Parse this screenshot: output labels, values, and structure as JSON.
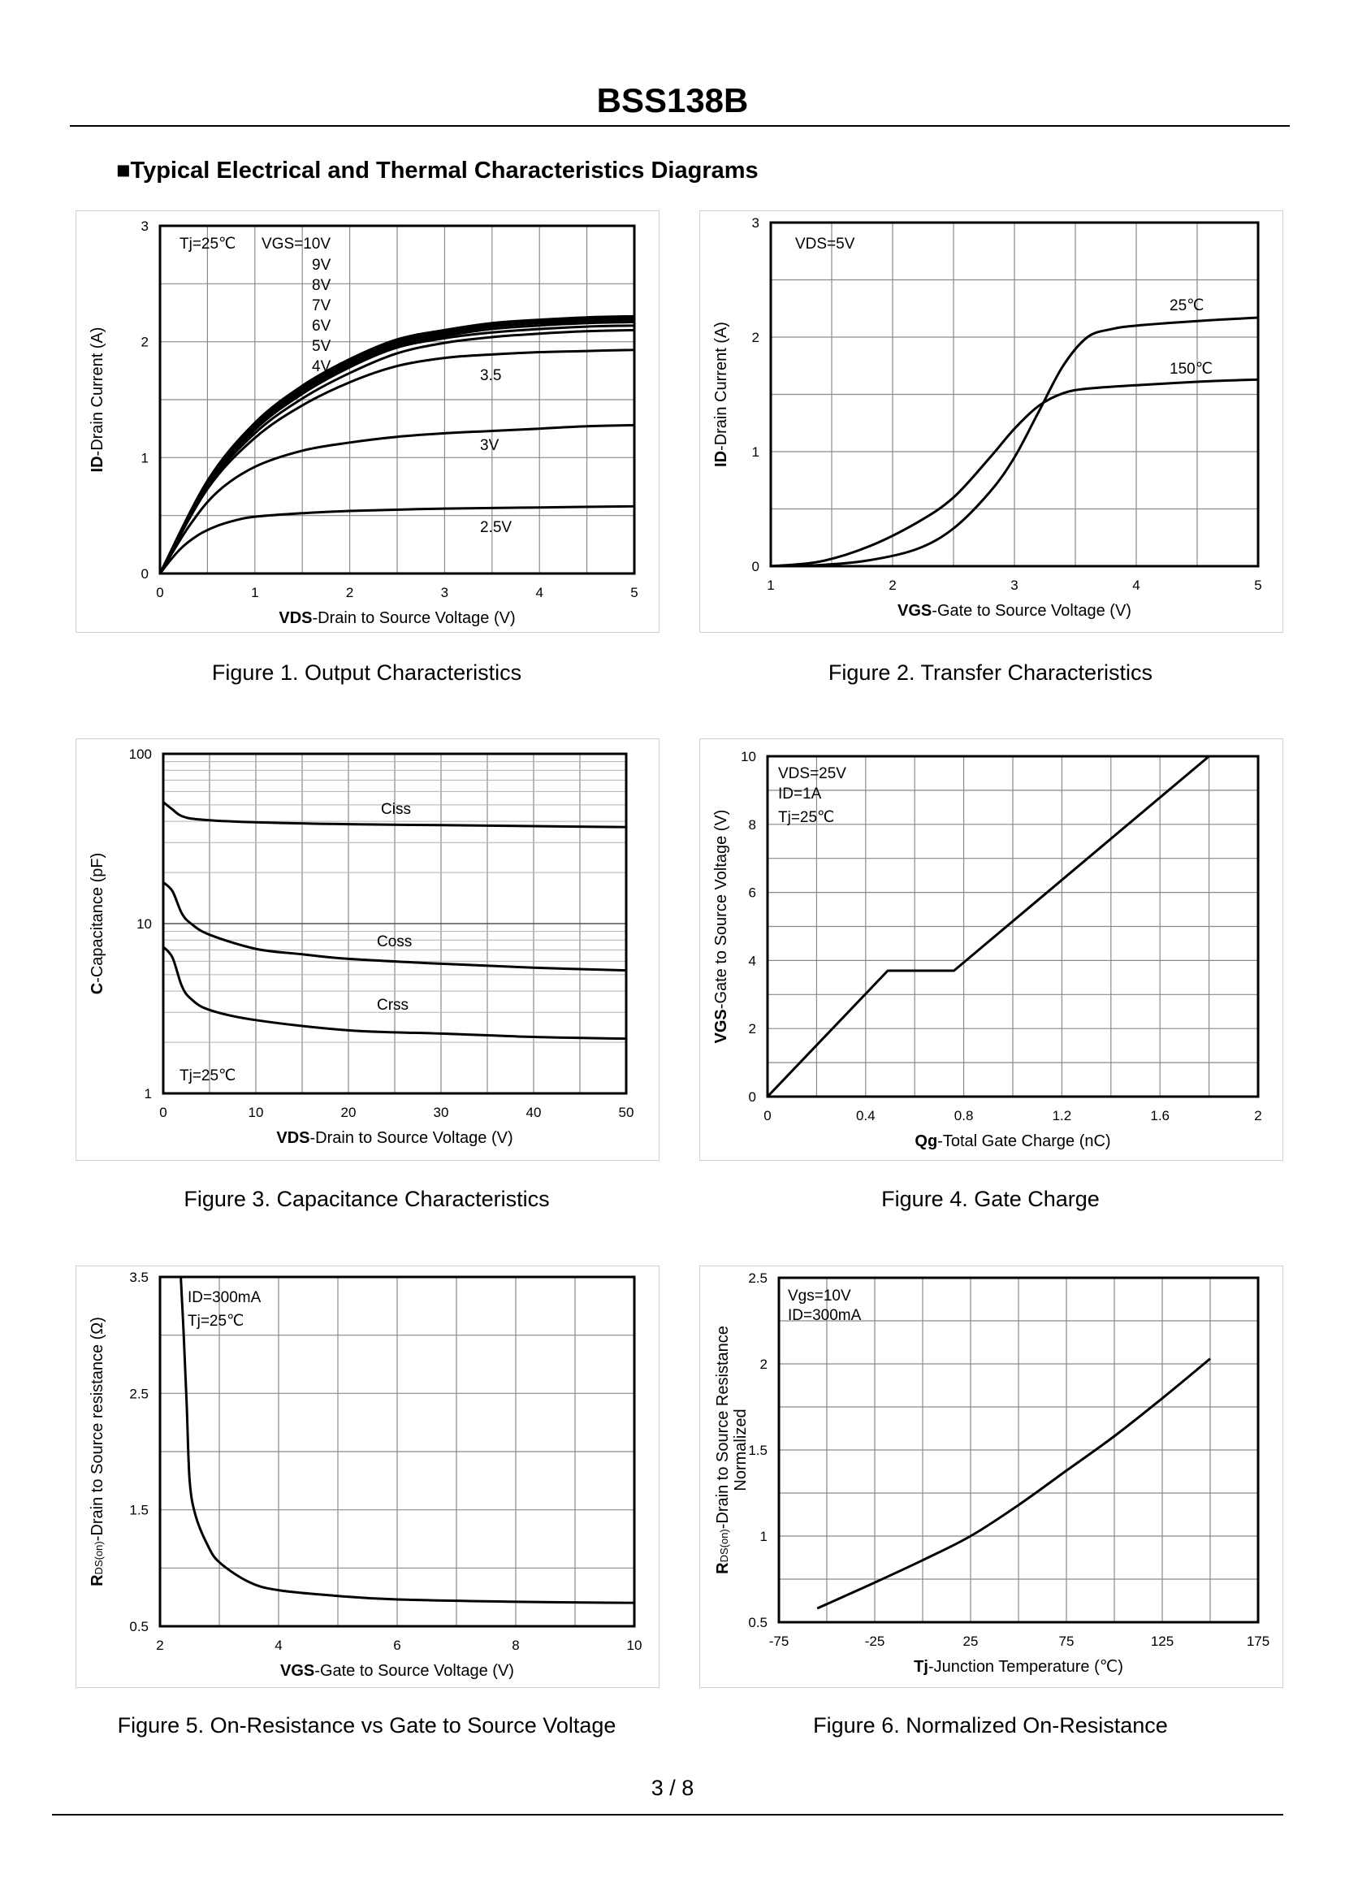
{
  "header": {
    "title": "BSS138B",
    "section": "■Typical Electrical and Thermal Characteristics Diagrams"
  },
  "footer": {
    "page": "3 / 8"
  },
  "chart_data": [
    {
      "type": "line",
      "caption": "Figure 1.  Output Characteristics",
      "xlabel_bold": "VDS",
      "xlabel_rest": "-Drain to Source Voltage (V)",
      "ylabel_bold": "ID",
      "ylabel_rest": "-Drain Current  (A)",
      "xlim": [
        0,
        5
      ],
      "ylim": [
        0,
        3
      ],
      "xticks": [
        0,
        1,
        2,
        3,
        4,
        5
      ],
      "yticks": [
        0,
        1,
        2,
        3
      ],
      "annotations": [
        "Tj=25℃",
        "VGS=10V",
        "9V",
        "8V",
        "7V",
        "6V",
        "5V",
        "4V",
        "3.5",
        "3V",
        "2.5V"
      ],
      "series": [
        {
          "name": "10V",
          "points": [
            [
              0,
              0
            ],
            [
              0.5,
              0.8
            ],
            [
              1,
              1.3
            ],
            [
              1.5,
              1.62
            ],
            [
              2,
              1.85
            ],
            [
              2.5,
              2.02
            ],
            [
              3,
              2.1
            ],
            [
              3.5,
              2.16
            ],
            [
              4,
              2.19
            ],
            [
              4.5,
              2.21
            ],
            [
              5,
              2.22
            ]
          ]
        },
        {
          "name": "9V",
          "points": [
            [
              0,
              0
            ],
            [
              0.5,
              0.79
            ],
            [
              1,
              1.29
            ],
            [
              1.5,
              1.61
            ],
            [
              2,
              1.84
            ],
            [
              2.5,
              2.01
            ],
            [
              3,
              2.09
            ],
            [
              3.5,
              2.15
            ],
            [
              4,
              2.18
            ],
            [
              4.5,
              2.2
            ],
            [
              5,
              2.21
            ]
          ]
        },
        {
          "name": "8V",
          "points": [
            [
              0,
              0
            ],
            [
              0.5,
              0.78
            ],
            [
              1,
              1.28
            ],
            [
              1.5,
              1.6
            ],
            [
              2,
              1.83
            ],
            [
              2.5,
              2.0
            ],
            [
              3,
              2.08
            ],
            [
              3.5,
              2.14
            ],
            [
              4,
              2.17
            ],
            [
              4.5,
              2.19
            ],
            [
              5,
              2.2
            ]
          ]
        },
        {
          "name": "7V",
          "points": [
            [
              0,
              0
            ],
            [
              0.5,
              0.78
            ],
            [
              1,
              1.27
            ],
            [
              1.5,
              1.59
            ],
            [
              2,
              1.82
            ],
            [
              2.5,
              1.99
            ],
            [
              3,
              2.07
            ],
            [
              3.5,
              2.13
            ],
            [
              4,
              2.16
            ],
            [
              4.5,
              2.18
            ],
            [
              5,
              2.19
            ]
          ]
        },
        {
          "name": "6V",
          "points": [
            [
              0,
              0
            ],
            [
              0.5,
              0.77
            ],
            [
              1,
              1.26
            ],
            [
              1.5,
              1.57
            ],
            [
              2,
              1.8
            ],
            [
              2.5,
              1.97
            ],
            [
              3,
              2.05
            ],
            [
              3.5,
              2.11
            ],
            [
              4,
              2.14
            ],
            [
              4.5,
              2.16
            ],
            [
              5,
              2.17
            ]
          ]
        },
        {
          "name": "5V",
          "points": [
            [
              0,
              0
            ],
            [
              0.5,
              0.76
            ],
            [
              1,
              1.24
            ],
            [
              1.5,
              1.55
            ],
            [
              2,
              1.78
            ],
            [
              2.5,
              1.95
            ],
            [
              3,
              2.03
            ],
            [
              3.5,
              2.08
            ],
            [
              4,
              2.11
            ],
            [
              4.5,
              2.13
            ],
            [
              5,
              2.14
            ]
          ]
        },
        {
          "name": "4V",
          "points": [
            [
              0,
              0
            ],
            [
              0.5,
              0.75
            ],
            [
              1,
              1.21
            ],
            [
              1.5,
              1.51
            ],
            [
              2,
              1.73
            ],
            [
              2.5,
              1.9
            ],
            [
              3,
              1.99
            ],
            [
              3.5,
              2.04
            ],
            [
              4,
              2.07
            ],
            [
              4.5,
              2.09
            ],
            [
              5,
              2.1
            ]
          ]
        },
        {
          "name": "3.5",
          "points": [
            [
              0,
              0
            ],
            [
              0.5,
              0.73
            ],
            [
              1,
              1.17
            ],
            [
              1.5,
              1.45
            ],
            [
              2,
              1.65
            ],
            [
              2.5,
              1.79
            ],
            [
              3,
              1.86
            ],
            [
              3.5,
              1.89
            ],
            [
              4,
              1.91
            ],
            [
              4.5,
              1.92
            ],
            [
              5,
              1.93
            ]
          ]
        },
        {
          "name": "3V",
          "points": [
            [
              0,
              0
            ],
            [
              0.3,
              0.4
            ],
            [
              0.6,
              0.7
            ],
            [
              1,
              0.92
            ],
            [
              1.5,
              1.06
            ],
            [
              2,
              1.13
            ],
            [
              2.5,
              1.18
            ],
            [
              3,
              1.21
            ],
            [
              3.5,
              1.23
            ],
            [
              4,
              1.25
            ],
            [
              4.5,
              1.27
            ],
            [
              5,
              1.28
            ]
          ]
        },
        {
          "name": "2.5V",
          "points": [
            [
              0,
              0
            ],
            [
              0.2,
              0.2
            ],
            [
              0.4,
              0.33
            ],
            [
              0.6,
              0.41
            ],
            [
              0.8,
              0.46
            ],
            [
              1,
              0.49
            ],
            [
              1.5,
              0.52
            ],
            [
              2,
              0.54
            ],
            [
              3,
              0.56
            ],
            [
              4,
              0.57
            ],
            [
              5,
              0.58
            ]
          ]
        }
      ]
    },
    {
      "type": "line",
      "caption": "Figure 2.  Transfer Characteristics",
      "xlabel_bold": "VGS",
      "xlabel_rest": "-Gate to Source Voltage (V)",
      "ylabel_bold": "ID",
      "ylabel_rest": "-Drain Current  (A)",
      "xlim": [
        1,
        5
      ],
      "ylim": [
        0,
        3
      ],
      "xticks": [
        1,
        2,
        3,
        4,
        5
      ],
      "yticks": [
        0,
        1,
        2,
        3
      ],
      "annotations": [
        "VDS=5V",
        "25℃",
        "150℃"
      ],
      "series": [
        {
          "name": "25℃",
          "points": [
            [
              1,
              0
            ],
            [
              1.4,
              0.01
            ],
            [
              1.8,
              0.05
            ],
            [
              2.2,
              0.15
            ],
            [
              2.5,
              0.33
            ],
            [
              2.8,
              0.65
            ],
            [
              3.0,
              0.95
            ],
            [
              3.2,
              1.35
            ],
            [
              3.4,
              1.75
            ],
            [
              3.6,
              2.0
            ],
            [
              3.8,
              2.07
            ],
            [
              4,
              2.1
            ],
            [
              4.5,
              2.14
            ],
            [
              5,
              2.17
            ]
          ]
        },
        {
          "name": "150℃",
          "points": [
            [
              1,
              0
            ],
            [
              1.4,
              0.04
            ],
            [
              1.8,
              0.17
            ],
            [
              2.2,
              0.38
            ],
            [
              2.5,
              0.6
            ],
            [
              2.8,
              0.95
            ],
            [
              3.0,
              1.2
            ],
            [
              3.2,
              1.4
            ],
            [
              3.4,
              1.51
            ],
            [
              3.6,
              1.55
            ],
            [
              4,
              1.58
            ],
            [
              4.5,
              1.61
            ],
            [
              5,
              1.63
            ]
          ]
        }
      ]
    },
    {
      "type": "line",
      "caption": "Figure 3.  Capacitance Characteristics",
      "xlabel_bold": "VDS",
      "xlabel_rest": "-Drain to Source Voltage (V)",
      "ylabel_bold": "C",
      "ylabel_rest": "-Capacitance (pF)",
      "xlim": [
        0,
        50
      ],
      "ylim": [
        1,
        100
      ],
      "yscale": "log",
      "xticks": [
        0,
        10,
        20,
        30,
        40,
        50
      ],
      "yticks": [
        1,
        10,
        100
      ],
      "annotations": [
        "Ciss",
        "Coss",
        "Crss",
        "Tj=25℃"
      ],
      "series": [
        {
          "name": "Ciss",
          "points": [
            [
              0,
              52
            ],
            [
              1,
              47
            ],
            [
              2,
              43
            ],
            [
              4,
              41
            ],
            [
              10,
              39.5
            ],
            [
              20,
              38.5
            ],
            [
              30,
              38
            ],
            [
              40,
              37.5
            ],
            [
              50,
              37
            ]
          ]
        },
        {
          "name": "Coss",
          "points": [
            [
              0,
              17.5
            ],
            [
              1,
              15.5
            ],
            [
              2,
              11.5
            ],
            [
              3,
              10
            ],
            [
              5,
              8.6
            ],
            [
              10,
              7.1
            ],
            [
              15,
              6.6
            ],
            [
              20,
              6.2
            ],
            [
              30,
              5.8
            ],
            [
              40,
              5.5
            ],
            [
              50,
              5.3
            ]
          ]
        },
        {
          "name": "Crss",
          "points": [
            [
              0,
              7.3
            ],
            [
              1,
              6.3
            ],
            [
              2,
              4.3
            ],
            [
              3,
              3.6
            ],
            [
              5,
              3.1
            ],
            [
              10,
              2.7
            ],
            [
              20,
              2.35
            ],
            [
              30,
              2.25
            ],
            [
              40,
              2.15
            ],
            [
              50,
              2.1
            ]
          ]
        }
      ]
    },
    {
      "type": "line",
      "caption": "Figure 4.  Gate Charge",
      "xlabel_bold": "Qg",
      "xlabel_rest": "-Total Gate Charge (nC)",
      "ylabel_bold": "VGS",
      "ylabel_rest": "-Gate to Source Voltage (V)",
      "xlim": [
        0,
        2
      ],
      "ylim": [
        0,
        10
      ],
      "xticks": [
        "0",
        "0.4",
        "0.8",
        "1.2",
        "1.6",
        "2"
      ],
      "yticks": [
        0,
        2,
        4,
        6,
        8,
        10
      ],
      "annotations": [
        "VDS=25V",
        "ID=1A",
        "Tj=25℃"
      ],
      "series": [
        {
          "name": "",
          "points": [
            [
              0,
              0
            ],
            [
              0.49,
              3.7
            ],
            [
              0.76,
              3.7
            ],
            [
              1.8,
              10
            ]
          ]
        }
      ]
    },
    {
      "type": "line",
      "caption": "Figure 5.  On-Resistance vs Gate to Source Voltage",
      "xlabel_bold": "VGS",
      "xlabel_rest": "-Gate to Source Voltage (V)",
      "ylabel_bold": "R",
      "ylabel_sub": "DS(on)",
      "ylabel_rest": "-Drain to Source resistance (Ω)",
      "xlim": [
        2,
        10
      ],
      "ylim": [
        0.5,
        3.5
      ],
      "xticks": [
        2,
        4,
        6,
        8,
        10
      ],
      "yticks": [
        "0.5",
        "1.5",
        "2.5",
        "3.5"
      ],
      "annotations": [
        "ID=300mA",
        "Tj=25℃"
      ],
      "series": [
        {
          "name": "",
          "points": [
            [
              2.35,
              3.5
            ],
            [
              2.4,
              3.0
            ],
            [
              2.45,
              2.4
            ],
            [
              2.5,
              1.75
            ],
            [
              2.6,
              1.45
            ],
            [
              2.8,
              1.2
            ],
            [
              3,
              1.05
            ],
            [
              3.5,
              0.88
            ],
            [
              4,
              0.81
            ],
            [
              5,
              0.76
            ],
            [
              6,
              0.73
            ],
            [
              8,
              0.71
            ],
            [
              10,
              0.7
            ]
          ]
        }
      ]
    },
    {
      "type": "line",
      "caption": "Figure 6.  Normalized On-Resistance",
      "xlabel_bold": "Tj",
      "xlabel_rest": "-Junction  Temperature (℃)",
      "ylabel_bold": "R",
      "ylabel_sub": "DS(on)",
      "ylabel_rest": "-Drain to Source Resistance",
      "ylabel_line2": "Normalized",
      "xlim": [
        -75,
        175
      ],
      "ylim": [
        0.5,
        2.5
      ],
      "xticks": [
        -75,
        -25,
        25,
        75,
        125,
        175
      ],
      "yticks": [
        "0.5",
        "1",
        "1.5",
        "2",
        "2.5"
      ],
      "annotations": [
        "Vgs=10V",
        "ID=300mA"
      ],
      "series": [
        {
          "name": "",
          "points": [
            [
              -55,
              0.58
            ],
            [
              -25,
              0.73
            ],
            [
              0,
              0.86
            ],
            [
              25,
              1.0
            ],
            [
              50,
              1.18
            ],
            [
              75,
              1.38
            ],
            [
              100,
              1.58
            ],
            [
              125,
              1.8
            ],
            [
              150,
              2.03
            ]
          ]
        }
      ]
    }
  ]
}
